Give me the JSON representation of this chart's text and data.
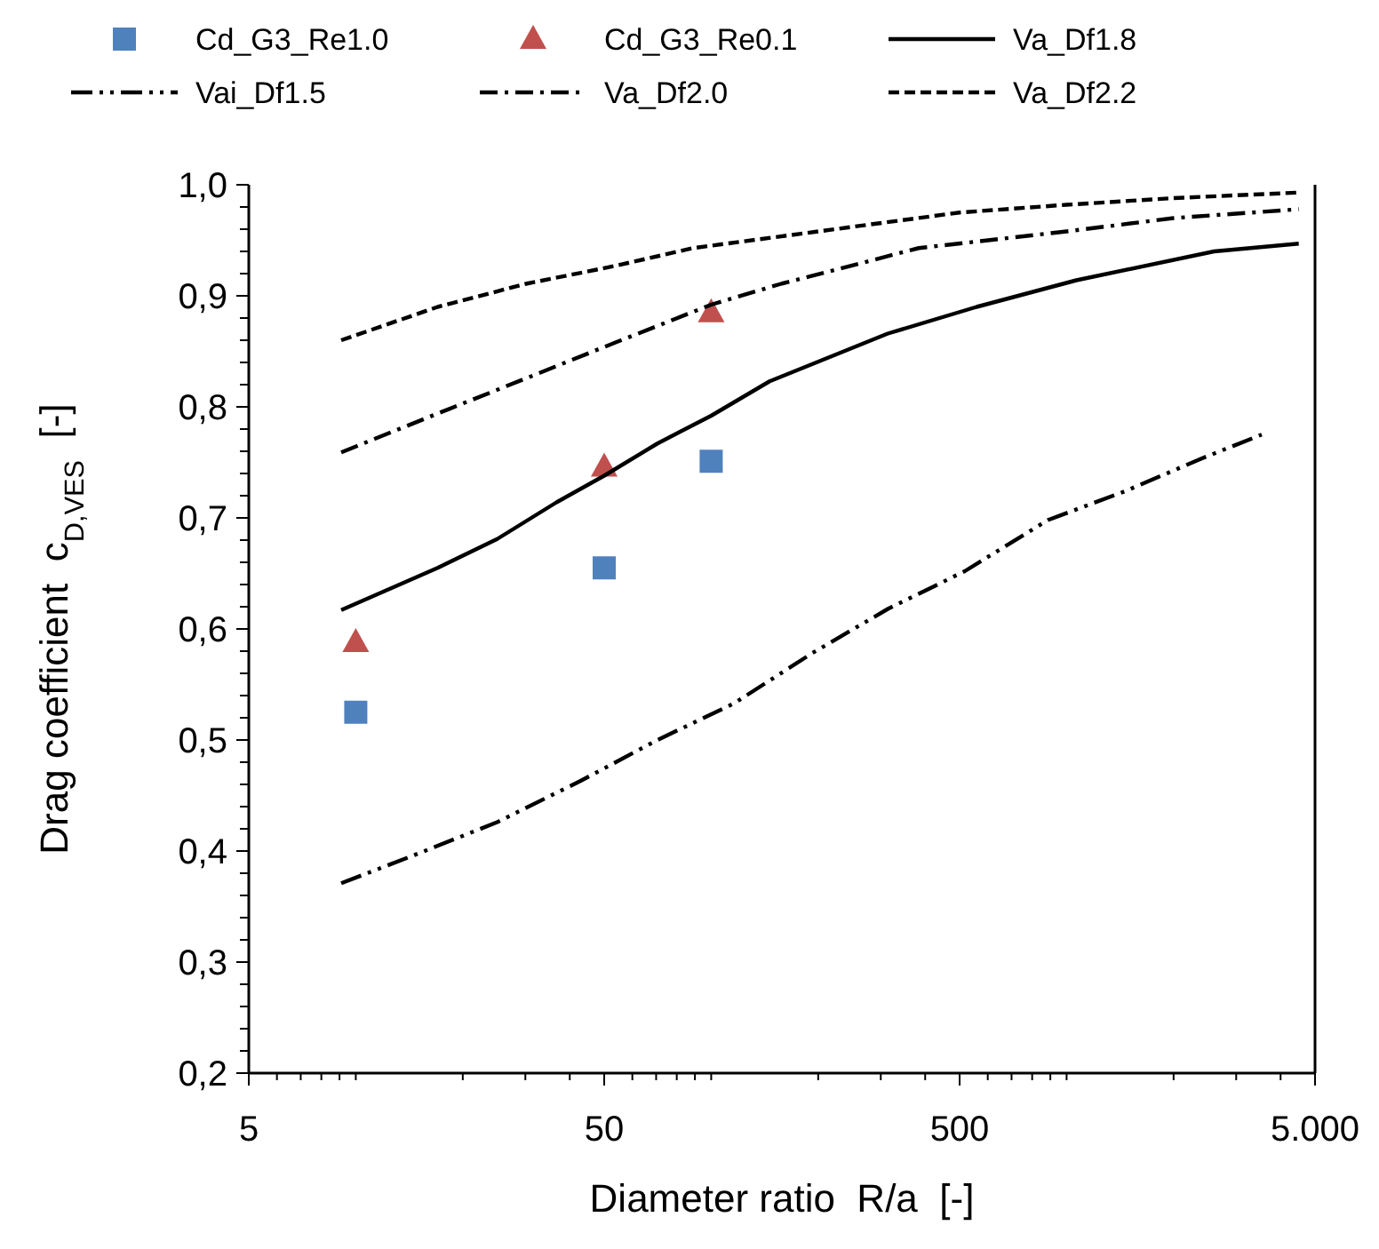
{
  "chart_data": {
    "type": "line",
    "xlabel": "Diameter ratio  R/a  [-]",
    "ylabel": "Drag coefficient  c$_{D,VES}$  [-]",
    "log": "x",
    "legend": "top",
    "grid": false,
    "xlim": [
      5,
      5000
    ],
    "ylim": [
      0.2,
      1.0
    ],
    "xticks": [
      5,
      {
        "value": 6,
        "label": null
      },
      {
        "value": 7,
        "label": null
      },
      {
        "value": 8,
        "label": null
      },
      {
        "value": 9,
        "label": null
      },
      {
        "value": 10,
        "label": null
      },
      {
        "value": 20,
        "label": null
      },
      {
        "value": 30,
        "label": null
      },
      {
        "value": 40,
        "label": null
      },
      50,
      {
        "value": 60,
        "label": null
      },
      {
        "value": 70,
        "label": null
      },
      {
        "value": 80,
        "label": null
      },
      {
        "value": 90,
        "label": null
      },
      {
        "value": 100,
        "label": null
      },
      {
        "value": 200,
        "label": null
      },
      {
        "value": 300,
        "label": null
      },
      {
        "value": 400,
        "label": null
      },
      500,
      {
        "value": 600,
        "label": null
      },
      {
        "value": 700,
        "label": null
      },
      {
        "value": 800,
        "label": null
      },
      {
        "value": 900,
        "label": null
      },
      {
        "value": 1000,
        "label": null
      },
      {
        "value": 2000,
        "label": null
      },
      {
        "value": 3000,
        "label": null
      },
      {
        "value": 4000,
        "label": null
      },
      {
        "value": 5000,
        "label": "5.000"
      }
    ],
    "yticks": [
      {
        "value": 0.2,
        "label": "0,2"
      },
      {
        "value": 0.22,
        "label": null
      },
      {
        "value": 0.24,
        "label": null
      },
      {
        "value": 0.26,
        "label": null
      },
      {
        "value": 0.28,
        "label": null
      },
      {
        "value": 0.3,
        "label": "0,3"
      },
      {
        "value": 0.32,
        "label": null
      },
      {
        "value": 0.34,
        "label": null
      },
      {
        "value": 0.36,
        "label": null
      },
      {
        "value": 0.38,
        "label": null
      },
      {
        "value": 0.4,
        "label": "0,4"
      },
      {
        "value": 0.42,
        "label": null
      },
      {
        "value": 0.44,
        "label": null
      },
      {
        "value": 0.46,
        "label": null
      },
      {
        "value": 0.48,
        "label": null
      },
      {
        "value": 0.5,
        "label": "0,5"
      },
      {
        "value": 0.52,
        "label": null
      },
      {
        "value": 0.54,
        "label": null
      },
      {
        "value": 0.56,
        "label": null
      },
      {
        "value": 0.58,
        "label": null
      },
      {
        "value": 0.6,
        "label": "0,6"
      },
      {
        "value": 0.62,
        "label": null
      },
      {
        "value": 0.64,
        "label": null
      },
      {
        "value": 0.66,
        "label": null
      },
      {
        "value": 0.68,
        "label": null
      },
      {
        "value": 0.7,
        "label": "0,7"
      },
      {
        "value": 0.72,
        "label": null
      },
      {
        "value": 0.74,
        "label": null
      },
      {
        "value": 0.76,
        "label": null
      },
      {
        "value": 0.78,
        "label": null
      },
      {
        "value": 0.8,
        "label": "0,8"
      },
      {
        "value": 0.82,
        "label": null
      },
      {
        "value": 0.84,
        "label": null
      },
      {
        "value": 0.86,
        "label": null
      },
      {
        "value": 0.88,
        "label": null
      },
      {
        "value": 0.9,
        "label": "0,9"
      },
      {
        "value": 0.92,
        "label": null
      },
      {
        "value": 0.94,
        "label": null
      },
      {
        "value": 0.96,
        "label": null
      },
      {
        "value": 0.98,
        "label": null
      },
      {
        "value": 1.0,
        "label": "1,0"
      }
    ],
    "series": [
      {
        "name": "Cd_G3_Re1.0",
        "type": "scatter",
        "marker": "square",
        "color": "#4f81bd",
        "x": [
          10,
          50,
          100
        ],
        "values": [
          0.525,
          0.655,
          0.751
        ]
      },
      {
        "name": "Cd_G3_Re0.1",
        "type": "scatter",
        "marker": "triangle",
        "color": "#c0504d",
        "x": [
          10,
          50,
          100
        ],
        "values": [
          0.588,
          0.746,
          0.885
        ]
      },
      {
        "name": "Va_Df1.8",
        "line_style": "solid",
        "color": "#000000",
        "x": [
          9.1,
          17,
          25,
          36.7,
          50,
          70.6,
          100,
          146,
          314,
          558,
          1065,
          2600,
          4500
        ],
        "values": [
          0.617,
          0.655,
          0.681,
          0.714,
          0.738,
          0.767,
          0.792,
          0.823,
          0.866,
          0.89,
          0.914,
          0.94,
          0.947
        ]
      },
      {
        "name": "Vai_Df1.5",
        "line_style": "dashdotdot",
        "color": "#000000",
        "x": [
          9.1,
          14,
          25,
          42.8,
          70.6,
          116,
          192,
          314,
          517,
          885,
          1460,
          2420,
          3540
        ],
        "values": [
          0.371,
          0.394,
          0.426,
          0.463,
          0.5,
          0.533,
          0.578,
          0.618,
          0.652,
          0.698,
          0.724,
          0.754,
          0.775
        ]
      },
      {
        "name": "Va_Df2.0",
        "line_style": "dashdot",
        "color": "#000000",
        "x": [
          9.1,
          17,
          30.3,
          53.8,
          100,
          158,
          215,
          384,
          1000,
          2000,
          4500
        ],
        "values": [
          0.759,
          0.794,
          0.826,
          0.858,
          0.892,
          0.911,
          0.922,
          0.943,
          0.958,
          0.97,
          0.978
        ]
      },
      {
        "name": "Va_Df2.2",
        "line_style": "dashed",
        "color": "#000000",
        "x": [
          9.1,
          17,
          30.3,
          53.8,
          89,
          200,
          500,
          1000,
          2000,
          4500
        ],
        "values": [
          0.86,
          0.89,
          0.911,
          0.927,
          0.943,
          0.958,
          0.975,
          0.982,
          0.988,
          0.993
        ]
      }
    ]
  }
}
